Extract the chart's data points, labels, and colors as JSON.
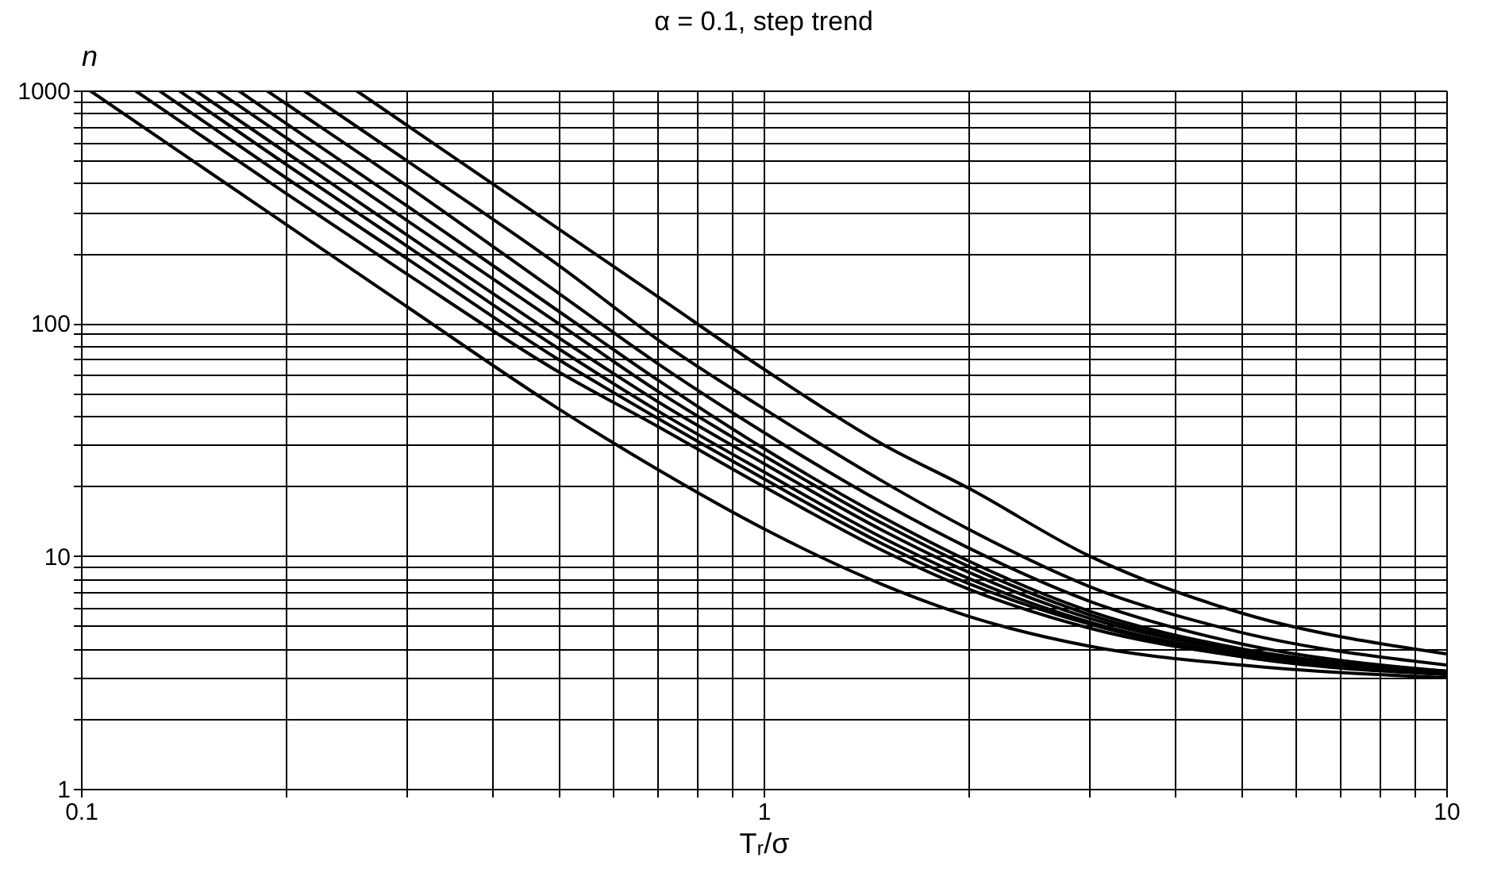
{
  "chart_data": {
    "type": "line",
    "title": "α = 0.1, step trend",
    "xlabel": "Tᵣ/σ",
    "ylabel": "n",
    "log": "xy",
    "grid": true,
    "legend": false,
    "marker": "none",
    "line_style": "solid",
    "xlim": [
      0.1,
      10
    ],
    "ylim": [
      1,
      1000
    ],
    "xticks": [
      0.1,
      {
        "value": 0.2,
        "label": null
      },
      {
        "value": 0.3,
        "label": null
      },
      {
        "value": 0.4,
        "label": null
      },
      {
        "value": 0.5,
        "label": null
      },
      {
        "value": 0.6,
        "label": null
      },
      {
        "value": 0.7,
        "label": null
      },
      {
        "value": 0.8,
        "label": null
      },
      {
        "value": 0.9,
        "label": null
      },
      1,
      {
        "value": 2,
        "label": null
      },
      {
        "value": 3,
        "label": null
      },
      {
        "value": 4,
        "label": null
      },
      {
        "value": 5,
        "label": null
      },
      {
        "value": 6,
        "label": null
      },
      {
        "value": 7,
        "label": null
      },
      {
        "value": 8,
        "label": null
      },
      {
        "value": 9,
        "label": null
      },
      10
    ],
    "yticks": [
      1,
      {
        "value": 2,
        "label": null
      },
      {
        "value": 3,
        "label": null
      },
      {
        "value": 4,
        "label": null
      },
      {
        "value": 5,
        "label": null
      },
      {
        "value": 6,
        "label": null
      },
      {
        "value": 7,
        "label": null
      },
      {
        "value": 8,
        "label": null
      },
      {
        "value": 9,
        "label": null
      },
      10,
      {
        "value": 20,
        "label": null
      },
      {
        "value": 30,
        "label": null
      },
      {
        "value": 40,
        "label": null
      },
      {
        "value": 50,
        "label": null
      },
      {
        "value": 60,
        "label": null
      },
      {
        "value": 70,
        "label": null
      },
      {
        "value": 80,
        "label": null
      },
      {
        "value": 90,
        "label": null
      },
      100,
      {
        "value": 200,
        "label": null
      },
      {
        "value": 300,
        "label": null
      },
      {
        "value": 400,
        "label": null
      },
      {
        "value": 500,
        "label": null
      },
      {
        "value": 600,
        "label": null
      },
      {
        "value": 700,
        "label": null
      },
      {
        "value": 800,
        "label": null
      },
      {
        "value": 900,
        "label": null
      },
      1000
    ],
    "series": [
      {
        "color": "#000000",
        "x": [
          0.103,
          0.2,
          0.3,
          0.5,
          0.7,
          1,
          1.5,
          2,
          3,
          5,
          10
        ],
        "values": [
          1000,
          265,
          118,
          43,
          23.5,
          13.1,
          7.5,
          5.5,
          4.1,
          3.4,
          3.0
        ]
      },
      {
        "color": "#000000",
        "x": [
          0.12,
          0.2,
          0.3,
          0.5,
          0.7,
          1,
          1.5,
          2,
          3,
          5,
          10
        ],
        "values": [
          1000,
          360,
          163,
          62,
          36,
          19.9,
          10.5,
          7.2,
          4.9,
          3.7,
          3.1
        ]
      },
      {
        "color": "#000000",
        "x": [
          0.13,
          0.2,
          0.3,
          0.5,
          0.7,
          1,
          1.5,
          2,
          3,
          5,
          10
        ],
        "values": [
          1000,
          420,
          190,
          70,
          39,
          21.5,
          11.2,
          7.6,
          5.1,
          3.7,
          3.1
        ]
      },
      {
        "color": "#000000",
        "x": [
          0.139,
          0.2,
          0.3,
          0.5,
          0.7,
          1,
          1.5,
          2,
          3,
          5,
          10
        ],
        "values": [
          1000,
          480,
          215,
          78,
          42,
          23,
          11.9,
          8.0,
          5.2,
          3.8,
          3.1
        ]
      },
      {
        "color": "#000000",
        "x": [
          0.147,
          0.2,
          0.3,
          0.5,
          0.7,
          1,
          1.5,
          2,
          3,
          5,
          10
        ],
        "values": [
          1000,
          540,
          240,
          87,
          46,
          25,
          12.8,
          8.5,
          5.4,
          3.9,
          3.1
        ]
      },
      {
        "color": "#000000",
        "x": [
          0.158,
          0.2,
          0.3,
          0.5,
          0.7,
          1,
          1.5,
          2,
          3,
          5,
          10
        ],
        "values": [
          1000,
          625,
          277,
          100,
          51,
          27,
          13.7,
          9.0,
          5.6,
          3.9,
          3.15
        ]
      },
      {
        "color": "#000000",
        "x": [
          0.17,
          0.2,
          0.3,
          0.5,
          0.7,
          1,
          1.5,
          2,
          3,
          5,
          10
        ],
        "values": [
          1000,
          720,
          320,
          113,
          57,
          29,
          14.6,
          9.5,
          5.8,
          4.0,
          3.2
        ]
      },
      {
        "color": "#000000",
        "x": [
          0.187,
          0.2,
          0.3,
          0.5,
          0.7,
          1,
          1.5,
          2,
          3,
          5,
          10
        ],
        "values": [
          1000,
          875,
          390,
          135,
          67,
          34,
          16.8,
          10.8,
          6.4,
          4.2,
          3.2
        ]
      },
      {
        "color": "#000000",
        "x": [
          0.212,
          0.3,
          0.5,
          0.7,
          1,
          1.5,
          2,
          3,
          5,
          10
        ],
        "values": [
          1000,
          500,
          178,
          85,
          43,
          20.8,
          13,
          7.4,
          4.7,
          3.4
        ]
      },
      {
        "color": "#000000",
        "x": [
          0.253,
          0.3,
          0.5,
          0.7,
          1,
          1.5,
          2,
          3,
          5,
          10
        ],
        "values": [
          1000,
          710,
          255,
          130,
          63.6,
          30,
          19.5,
          10,
          5.7,
          3.8
        ]
      }
    ]
  }
}
